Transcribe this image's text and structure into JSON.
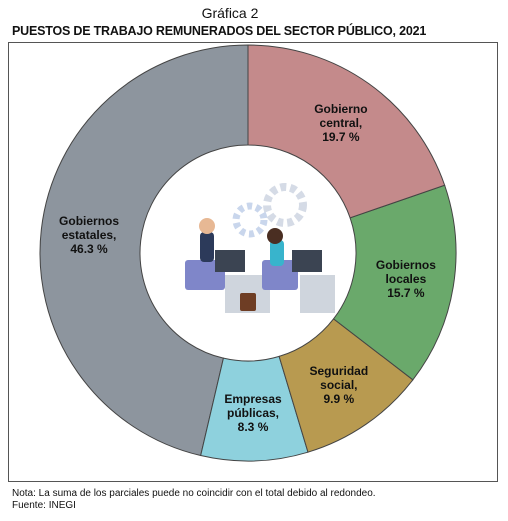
{
  "chart_data": {
    "type": "donut",
    "title": "Gráfica 2",
    "subtitle": "PUESTOS DE TRABAJO REMUNERADOS DEL SECTOR PÚBLICO, 2021",
    "categories": [
      "Gobierno central,",
      "Gobiernos locales",
      "Seguridad social,",
      "Empresas públicas,",
      "Gobiernos estatales,"
    ],
    "values": [
      19.7,
      15.7,
      9.9,
      8.3,
      46.3
    ],
    "value_labels": [
      "19.7 %",
      "15.7 %",
      "9.9 %",
      "8.3 %",
      "46.3 %"
    ],
    "colors": [
      "#c48a8b",
      "#6aa96b",
      "#b89a50",
      "#8ed1dd",
      "#8d959e"
    ],
    "notes": [
      "Nota: La suma de los parciales puede no coincidir con el total debido al redondeo.",
      "Fuente: INEGI"
    ]
  }
}
